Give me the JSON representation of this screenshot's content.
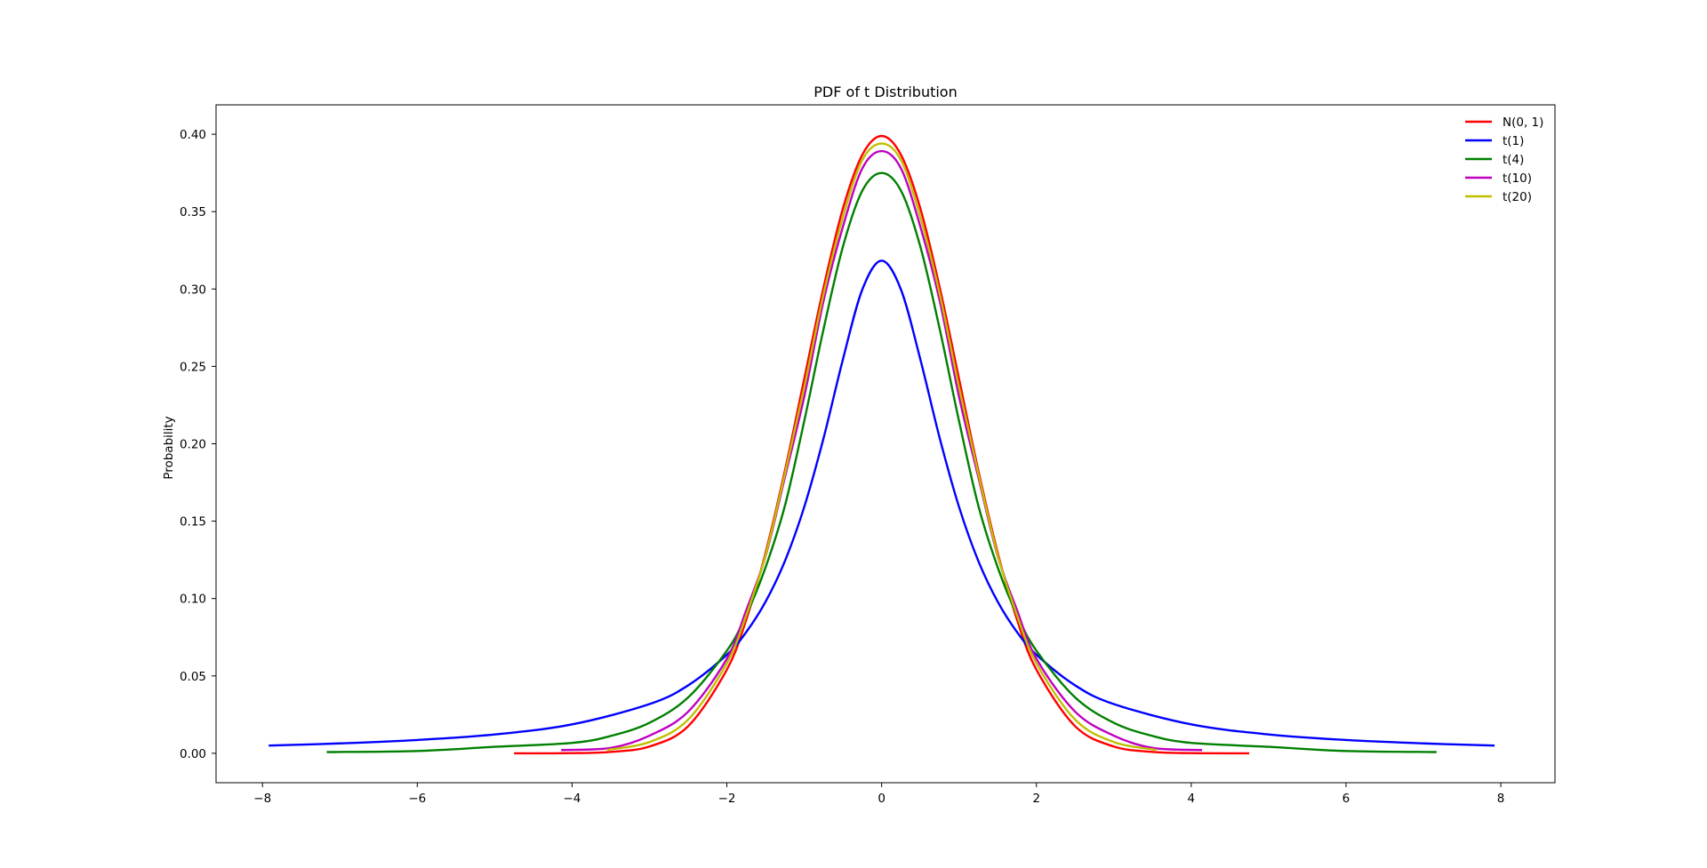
{
  "chart_data": {
    "type": "line",
    "title": "PDF of t Distribution",
    "xlabel": "",
    "ylabel": "Probability",
    "xlim": [
      -8.6,
      8.7
    ],
    "ylim": [
      -0.019,
      0.419
    ],
    "x_ticks": [
      -8,
      -6,
      -4,
      -2,
      0,
      2,
      4,
      6,
      8
    ],
    "x_tick_labels": [
      "−8",
      "−6",
      "−4",
      "−2",
      "0",
      "2",
      "4",
      "6",
      "8"
    ],
    "y_ticks": [
      0.0,
      0.05,
      0.1,
      0.15,
      0.2,
      0.25,
      0.3,
      0.35,
      0.4
    ],
    "y_tick_labels": [
      "0.00",
      "0.05",
      "0.10",
      "0.15",
      "0.20",
      "0.25",
      "0.30",
      "0.35",
      "0.40"
    ],
    "grid": false,
    "legend_position": "upper-right",
    "series": [
      {
        "name": "N(0, 1)",
        "color": "#ff0000",
        "x": [
          -4.75,
          -4.0,
          -3.5,
          -3.0,
          -2.5,
          -2.0,
          -1.75,
          -1.5,
          -1.25,
          -1.0,
          -0.75,
          -0.5,
          -0.25,
          0.0,
          0.25,
          0.5,
          0.75,
          1.0,
          1.25,
          1.5,
          1.75,
          2.0,
          2.5,
          3.0,
          3.5,
          4.0,
          4.75
        ],
        "y": [
          0.0,
          0.0001,
          0.0009,
          0.0044,
          0.0175,
          0.054,
          0.0863,
          0.1295,
          0.1826,
          0.242,
          0.3011,
          0.3521,
          0.3867,
          0.3989,
          0.3867,
          0.3521,
          0.3011,
          0.242,
          0.1826,
          0.1295,
          0.0863,
          0.054,
          0.0175,
          0.0044,
          0.0009,
          0.0001,
          0.0
        ]
      },
      {
        "name": "t(1)",
        "color": "#0000ff",
        "x": [
          -7.92,
          -7.0,
          -6.0,
          -5.0,
          -4.0,
          -3.0,
          -2.5,
          -2.0,
          -1.75,
          -1.5,
          -1.25,
          -1.0,
          -0.75,
          -0.5,
          -0.25,
          0.0,
          0.25,
          0.5,
          0.75,
          1.0,
          1.25,
          1.5,
          1.75,
          2.0,
          2.5,
          3.0,
          4.0,
          5.0,
          6.0,
          7.0,
          7.92
        ],
        "y": [
          0.005,
          0.0064,
          0.0086,
          0.0122,
          0.0187,
          0.0318,
          0.0439,
          0.0637,
          0.0783,
          0.0979,
          0.1242,
          0.1592,
          0.2037,
          0.2546,
          0.2996,
          0.3183,
          0.2996,
          0.2546,
          0.2037,
          0.1592,
          0.1242,
          0.0979,
          0.0783,
          0.0637,
          0.0439,
          0.0318,
          0.0187,
          0.0122,
          0.0086,
          0.0064,
          0.005
        ]
      },
      {
        "name": "t(4)",
        "color": "#008000",
        "x": [
          -7.17,
          -6.0,
          -5.0,
          -4.0,
          -3.5,
          -3.0,
          -2.5,
          -2.0,
          -1.75,
          -1.5,
          -1.25,
          -1.0,
          -0.75,
          -0.5,
          -0.25,
          0.0,
          0.25,
          0.5,
          0.75,
          1.0,
          1.25,
          1.5,
          1.75,
          2.0,
          2.5,
          3.0,
          3.5,
          4.0,
          5.0,
          6.0,
          7.17
        ],
        "y": [
          0.0008,
          0.0015,
          0.0042,
          0.0067,
          0.0112,
          0.0197,
          0.0361,
          0.0663,
          0.0893,
          0.1201,
          0.1599,
          0.2147,
          0.2742,
          0.3274,
          0.3635,
          0.375,
          0.3635,
          0.3274,
          0.2742,
          0.2147,
          0.1599,
          0.1201,
          0.0893,
          0.0663,
          0.0361,
          0.0197,
          0.0112,
          0.0067,
          0.0042,
          0.0015,
          0.0008
        ]
      },
      {
        "name": "t(10)",
        "color": "#bf00bf",
        "x": [
          -4.14,
          -3.5,
          -3.0,
          -2.5,
          -2.0,
          -1.75,
          -1.5,
          -1.25,
          -1.0,
          -0.75,
          -0.5,
          -0.25,
          0.0,
          0.25,
          0.5,
          0.75,
          1.0,
          1.25,
          1.5,
          1.75,
          2.0,
          2.5,
          3.0,
          3.5,
          4.14
        ],
        "y": [
          0.0021,
          0.0035,
          0.0114,
          0.0269,
          0.0611,
          0.0924,
          0.1274,
          0.1784,
          0.2304,
          0.2925,
          0.3403,
          0.3779,
          0.3891,
          0.3779,
          0.3403,
          0.2925,
          0.2304,
          0.1784,
          0.1274,
          0.0924,
          0.0611,
          0.0269,
          0.0114,
          0.0035,
          0.0021
        ]
      },
      {
        "name": "t(20)",
        "color": "#bfbf00",
        "x": [
          -3.55,
          -3.0,
          -2.5,
          -2.0,
          -1.75,
          -1.5,
          -1.25,
          -1.0,
          -0.75,
          -0.5,
          -0.25,
          0.0,
          0.25,
          0.5,
          0.75,
          1.0,
          1.25,
          1.5,
          1.75,
          2.0,
          2.5,
          3.0,
          3.55
        ],
        "y": [
          0.0022,
          0.0073,
          0.0218,
          0.0581,
          0.0891,
          0.128,
          0.1805,
          0.2364,
          0.2968,
          0.3465,
          0.3833,
          0.394,
          0.3833,
          0.3465,
          0.2968,
          0.2364,
          0.1805,
          0.128,
          0.0891,
          0.0581,
          0.0218,
          0.0073,
          0.0022
        ]
      }
    ]
  }
}
